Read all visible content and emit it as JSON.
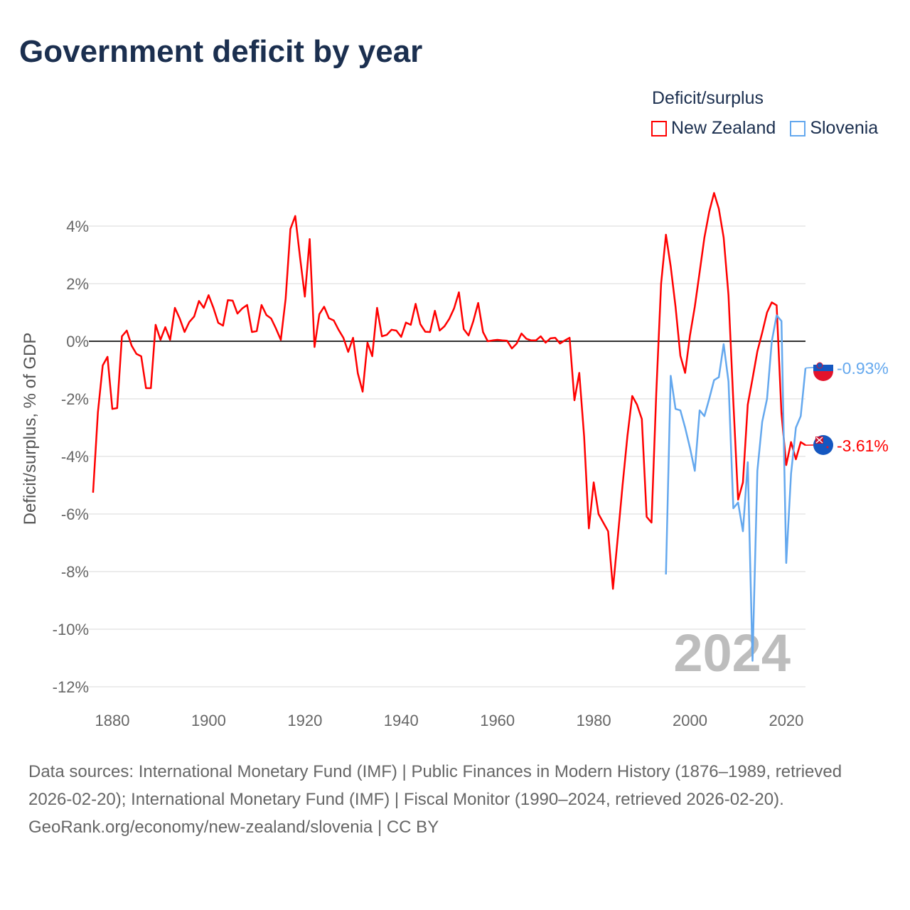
{
  "title": "Government deficit by year",
  "legend": {
    "title": "Deficit/surplus",
    "items": [
      {
        "label": "New Zealand",
        "color": "#ff0000"
      },
      {
        "label": "Slovenia",
        "color": "#64a8ee"
      }
    ]
  },
  "footer": {
    "sources": "Data sources: International Monetary Fund (IMF) | Public Finances in Modern History (1876–1989, retrieved 2026-02-20); International Monetary Fund (IMF) | Fiscal Monitor (1990–2024, retrieved 2026-02-20).",
    "credit": "GeoRank.org/economy/new-zealand/slovenia | CC BY"
  },
  "chart_data": {
    "type": "line",
    "title": "Government deficit by year",
    "ylabel": "Deficit/surplus, % of GDP",
    "xlabel": "",
    "ylim": [
      -12.5,
      5.5
    ],
    "xlim": [
      1876,
      2024
    ],
    "yticks": [
      4,
      2,
      0,
      -2,
      -4,
      -6,
      -8,
      -10,
      -12
    ],
    "ytick_labels": [
      "4%",
      "2%",
      "0%",
      "-2%",
      "-4%",
      "-6%",
      "-8%",
      "-10%",
      "-12%"
    ],
    "xticks": [
      1880,
      1900,
      1920,
      1940,
      1960,
      1980,
      2000,
      2020
    ],
    "xtick_labels": [
      "1880",
      "1900",
      "1920",
      "1940",
      "1960",
      "1980",
      "2000",
      "2020"
    ],
    "year_watermark": "2024",
    "grid": true,
    "legend_position": "top-right",
    "series": [
      {
        "name": "New Zealand",
        "color": "#ff0000",
        "start_year": 1876,
        "end_label": "-3.61%",
        "values": [
          -5.26,
          -2.47,
          -0.84,
          -0.54,
          -2.35,
          -2.32,
          0.17,
          0.37,
          -0.15,
          -0.44,
          -0.52,
          -1.63,
          -1.63,
          0.57,
          0.05,
          0.49,
          0.05,
          1.16,
          0.79,
          0.32,
          0.67,
          0.86,
          1.4,
          1.16,
          1.6,
          1.16,
          0.64,
          0.54,
          1.43,
          1.41,
          0.96,
          1.14,
          1.26,
          0.32,
          0.35,
          1.26,
          0.91,
          0.79,
          0.44,
          0.05,
          1.48,
          3.9,
          4.35,
          2.9,
          1.55,
          3.55,
          -0.2,
          0.94,
          1.2,
          0.8,
          0.72,
          0.4,
          0.12,
          -0.37,
          0.12,
          -1.11,
          -1.75,
          -0.05,
          -0.52,
          1.16,
          0.17,
          0.22,
          0.4,
          0.37,
          0.15,
          0.65,
          0.57,
          1.3,
          0.59,
          0.33,
          0.32,
          1.06,
          0.37,
          0.52,
          0.78,
          1.14,
          1.7,
          0.42,
          0.2,
          0.7,
          1.33,
          0.32,
          0.0,
          0.03,
          0.05,
          0.03,
          0.02,
          -0.25,
          -0.08,
          0.27,
          0.09,
          0.03,
          0.03,
          0.17,
          -0.05,
          0.1,
          0.12,
          -0.08,
          0.03,
          0.12,
          -2.05,
          -1.1,
          -3.3,
          -6.5,
          -4.9,
          -6.0,
          -6.3,
          -6.6,
          -8.6,
          -6.8,
          -5.0,
          -3.3,
          -1.9,
          -2.2,
          -2.7,
          -6.1,
          -6.3,
          -1.8,
          2.0,
          3.7,
          2.6,
          1.2,
          -0.5,
          -1.1,
          0.2,
          1.2,
          2.4,
          3.6,
          4.5,
          5.15,
          4.6,
          3.6,
          1.6,
          -2.1,
          -5.5,
          -4.9,
          -2.2,
          -1.3,
          -0.35,
          0.3,
          1.0,
          1.35,
          1.25,
          -2.5,
          -4.3,
          -3.5,
          -4.1,
          -3.5,
          -3.61
        ]
      },
      {
        "name": "Slovenia",
        "color": "#64a8ee",
        "start_year": 1995,
        "end_label": "-0.93%",
        "values": [
          -8.1,
          -1.2,
          -2.35,
          -2.4,
          -3.0,
          -3.7,
          -4.5,
          -2.4,
          -2.6,
          -2.0,
          -1.35,
          -1.25,
          -0.1,
          -1.4,
          -5.8,
          -5.6,
          -6.6,
          -4.2,
          -11.1,
          -4.5,
          -2.8,
          -2.0,
          0.0,
          0.9,
          0.7,
          -7.7,
          -4.6,
          -3.0,
          -2.6,
          -0.93
        ]
      }
    ]
  }
}
